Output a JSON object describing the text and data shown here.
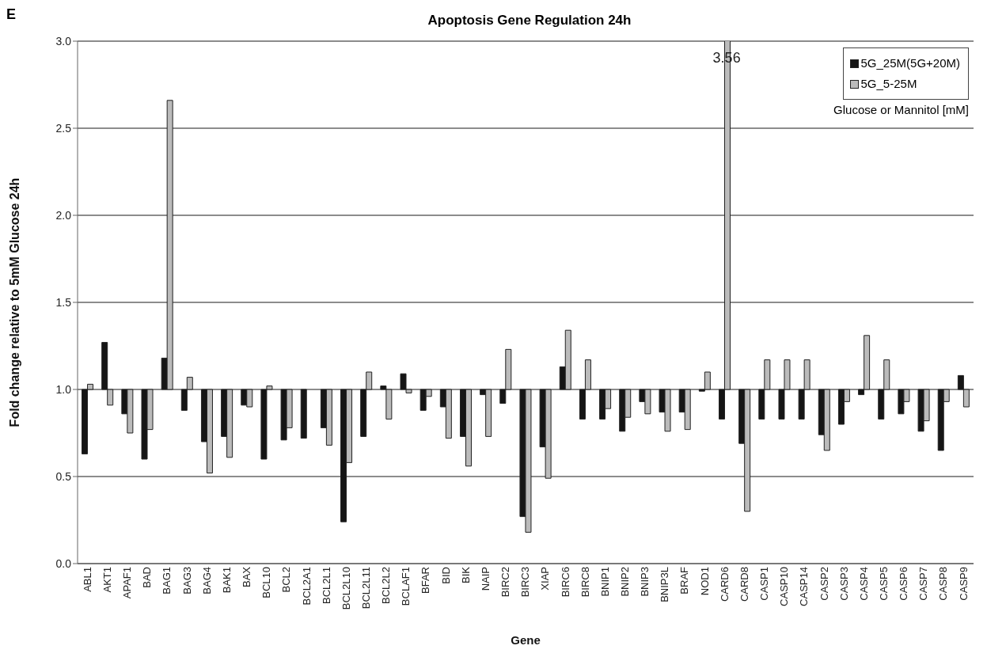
{
  "chart_data": {
    "type": "bar",
    "title": "Apoptosis Gene Regulation 24h",
    "xlabel": "Gene",
    "ylabel": "Fold change relative to 5mM Glucose 24h",
    "legend_title": "Glucose or Mannitol [mM]",
    "annotations": [
      "E"
    ],
    "categories": [
      "ABL1",
      "AKT1",
      "APAF1",
      "BAD",
      "BAG1",
      "BAG3",
      "BAG4",
      "BAK1",
      "BAX",
      "BCL10",
      "BCL2",
      "BCL2A1",
      "BCL2L1",
      "BCL2L10",
      "BCL2L11",
      "BCL2L2",
      "BCLAF1",
      "BFAR",
      "BID",
      "BIK",
      "NAIP",
      "BIRC2",
      "BIRC3",
      "XIAP",
      "BIRC6",
      "BIRC8",
      "BNIP1",
      "BNIP2",
      "BNIP3",
      "BNIP3L",
      "BRAF",
      "NOD1",
      "CARD6",
      "CARD8",
      "CASP1",
      "CASP10",
      "CASP14",
      "CASP2",
      "CASP3",
      "CASP4",
      "CASP5",
      "CASP6",
      "CASP7",
      "CASP8",
      "CASP9"
    ],
    "series": [
      {
        "name": "5G_25M(5G+20M)",
        "color": "#151515",
        "values": [
          -0.37,
          0.27,
          -0.14,
          -0.4,
          0.18,
          -0.12,
          -0.3,
          -0.27,
          -0.09,
          -0.4,
          -0.29,
          -0.28,
          -0.22,
          -0.76,
          -0.27,
          0.02,
          0.09,
          -0.12,
          -0.1,
          -0.27,
          -0.03,
          -0.08,
          -0.73,
          -0.33,
          0.13,
          -0.17,
          -0.17,
          -0.24,
          -0.07,
          -0.13,
          -0.13,
          -0.01,
          -0.17,
          -0.31,
          -0.17,
          -0.17,
          -0.17,
          -0.26,
          -0.2,
          -0.03,
          -0.17,
          -0.14,
          -0.24,
          -0.35,
          0.08
        ],
        "base": [
          1,
          1,
          1,
          1,
          1,
          1,
          1,
          1,
          1,
          1,
          1,
          1,
          1,
          1,
          1,
          1,
          1,
          1,
          1,
          1,
          1,
          1,
          1,
          1,
          1,
          1,
          1,
          1,
          1,
          1,
          1,
          1,
          1,
          1,
          1,
          1,
          1,
          1,
          1,
          1,
          1,
          1,
          1,
          1,
          1
        ]
      },
      {
        "name": "5G_5-25M",
        "color": "#bbbbbb",
        "values": [
          0.03,
          -0.09,
          -0.25,
          -0.23,
          1.66,
          0.07,
          -0.48,
          -0.39,
          -0.1,
          0.02,
          -0.22,
          null,
          -0.32,
          -0.42,
          0.1,
          -0.17,
          -0.02,
          -0.04,
          -0.28,
          -0.44,
          -0.27,
          0.23,
          -0.82,
          -0.51,
          0.34,
          0.17,
          -0.11,
          -0.16,
          -0.14,
          -0.24,
          -0.23,
          0.1,
          2.56,
          -0.7,
          0.17,
          0.17,
          0.17,
          -0.35,
          -0.07,
          0.31,
          0.17,
          -0.07,
          -0.18,
          -0.07,
          -0.1
        ],
        "base": [
          1,
          1,
          1,
          1,
          1,
          1,
          1,
          1,
          1,
          1,
          1,
          null,
          1,
          1,
          1,
          1,
          1,
          1,
          1,
          1,
          1,
          1,
          1,
          1,
          1,
          1,
          1,
          1,
          1,
          1,
          1,
          1,
          1,
          1,
          1,
          1,
          1,
          1,
          1,
          1,
          1,
          1,
          1,
          1,
          1
        ],
        "value_labels": [
          null,
          null,
          null,
          null,
          null,
          null,
          null,
          null,
          null,
          null,
          null,
          null,
          null,
          null,
          null,
          null,
          null,
          null,
          null,
          null,
          null,
          null,
          null,
          null,
          null,
          null,
          null,
          null,
          null,
          null,
          null,
          null,
          "3.56",
          null,
          null,
          null,
          null,
          null,
          null,
          null,
          null,
          null,
          null,
          null,
          null
        ]
      }
    ],
    "ylim": [
      0,
      3
    ],
    "yticks": [
      {
        "value": 0,
        "label": "0.0"
      },
      {
        "value": 0.5,
        "label": "0.5"
      },
      {
        "value": 1,
        "label": "1.0"
      },
      {
        "value": 1.5,
        "label": "1.5"
      },
      {
        "value": 2,
        "label": "2.0"
      },
      {
        "value": 2.5,
        "label": "2.5"
      },
      {
        "value": 3,
        "label": "3.0"
      }
    ],
    "grid": "y",
    "legend": "top right"
  }
}
